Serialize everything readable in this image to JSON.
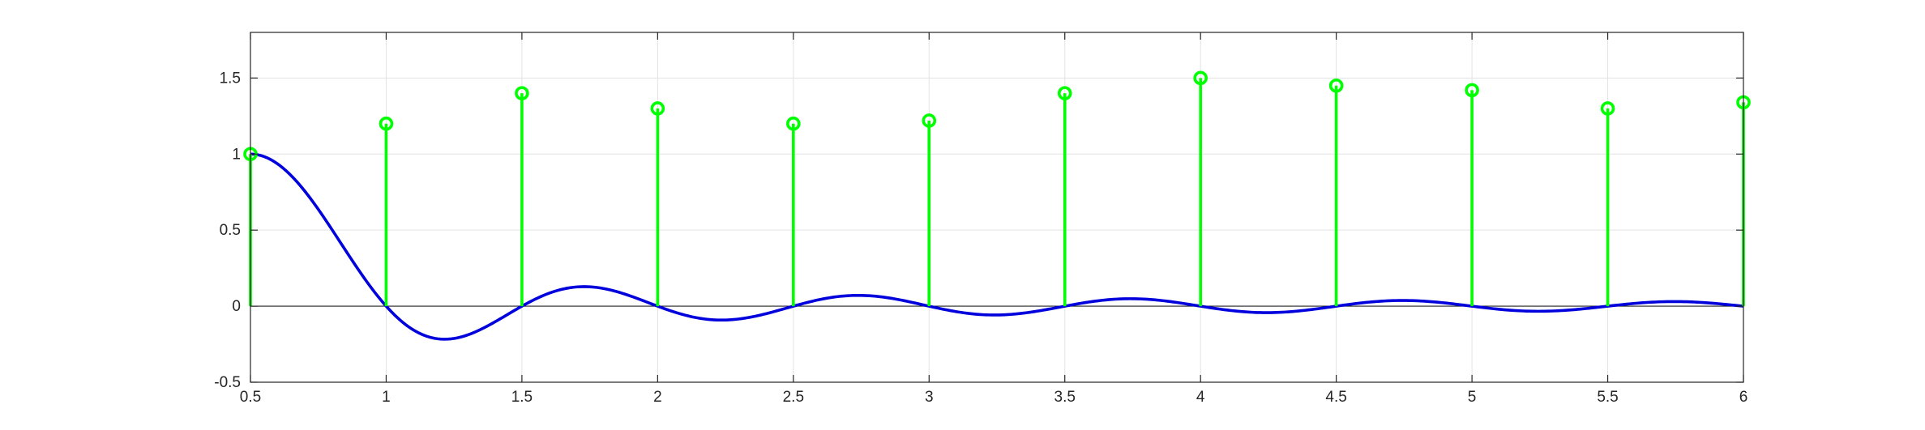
{
  "chart_data": {
    "type": "line",
    "title": "",
    "xlabel": "",
    "ylabel": "",
    "xlim": [
      0.5,
      6
    ],
    "ylim": [
      -0.5,
      1.8
    ],
    "xticks": [
      0.5,
      1,
      1.5,
      2,
      2.5,
      3,
      3.5,
      4,
      4.5,
      5,
      5.5,
      6
    ],
    "xtick_labels": [
      "0.5",
      "1",
      "1.5",
      "2",
      "2.5",
      "3",
      "3.5",
      "4",
      "4.5",
      "5",
      "5.5",
      "6"
    ],
    "yticks": [
      -0.5,
      0,
      0.5,
      1,
      1.5
    ],
    "ytick_labels": [
      "-0.5",
      "0",
      "0.5",
      "1",
      "1.5"
    ],
    "grid": true,
    "legend": "none",
    "series": [
      {
        "kind": "stem",
        "color": "#00ff00",
        "marker": "circle",
        "x": [
          0.5,
          1,
          1.5,
          2,
          2.5,
          3,
          3.5,
          4,
          4.5,
          5,
          5.5,
          6
        ],
        "values": [
          1.0,
          1.2,
          1.4,
          1.3,
          1.2,
          1.22,
          1.4,
          1.5,
          1.45,
          1.42,
          1.3,
          1.34
        ]
      },
      {
        "kind": "curve",
        "color": "#0000dd",
        "function": "sinc(2*(x-0.5))",
        "x_range": [
          0.5,
          6
        ],
        "samples": 551
      }
    ]
  }
}
